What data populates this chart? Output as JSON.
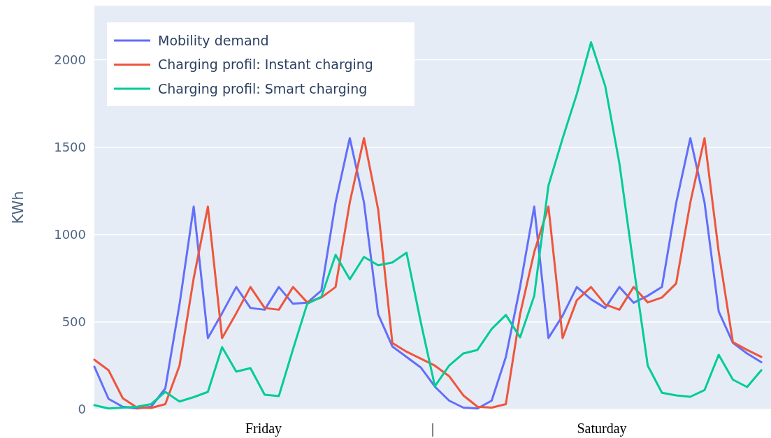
{
  "chart_data": {
    "type": "line",
    "ylabel": "KWh",
    "categories": [
      null,
      null,
      null,
      null,
      null,
      null,
      null,
      null,
      null,
      null,
      null,
      null,
      null,
      null,
      null,
      null,
      null,
      null,
      null,
      null,
      null,
      null,
      null,
      null,
      null,
      null,
      null,
      null,
      null,
      null,
      null,
      null,
      null,
      null,
      null,
      null,
      null,
      null,
      null,
      null,
      null,
      null,
      null,
      null,
      null,
      null,
      null,
      null
    ],
    "ylim": [
      0,
      2310
    ],
    "yticks": [
      0,
      500,
      1000,
      1500,
      2000
    ],
    "grid": "y",
    "legend": "top left",
    "line_style": "solid",
    "marker": "none",
    "annotations": [
      "Friday",
      "|",
      "Saturday"
    ],
    "series": [
      {
        "name": "Mobility demand",
        "color": "#636efa",
        "values": [
          244,
          60,
          15,
          5,
          15,
          120,
          600,
          1160,
          408,
          550,
          700,
          580,
          570,
          700,
          604,
          610,
          680,
          1184,
          1552,
          1184,
          544,
          360,
          300,
          240,
          130,
          50,
          10,
          5,
          50,
          300,
          700,
          1160,
          408,
          536,
          700,
          630,
          580,
          700,
          610,
          650,
          700,
          1180,
          1552,
          1184,
          560,
          380,
          320,
          270
        ]
      },
      {
        "name": "Charging profil: Instant charging",
        "color": "#ef553b",
        "values": [
          284,
          224,
          64,
          10,
          8,
          30,
          250,
          750,
          1160,
          408,
          550,
          700,
          580,
          570,
          700,
          612,
          640,
          700,
          1184,
          1552,
          1144,
          380,
          330,
          290,
          250,
          190,
          80,
          15,
          10,
          30,
          544,
          900,
          1160,
          408,
          624,
          700,
          600,
          570,
          700,
          612,
          640,
          720,
          1184,
          1552,
          900,
          384,
          340,
          300
        ]
      },
      {
        "name": "Charging profil: Smart charging",
        "color": "#00cc96",
        "values": [
          24,
          5,
          10,
          15,
          30,
          100,
          45,
          70,
          100,
          356,
          216,
          236,
          84,
          76,
          344,
          604,
          644,
          884,
          744,
          872,
          824,
          840,
          896,
          500,
          132,
          250,
          320,
          340,
          460,
          540,
          412,
          650,
          1280,
          1550,
          1804,
          2100,
          1850,
          1408,
          820,
          250,
          95,
          80,
          72,
          110,
          312,
          170,
          128,
          224
        ]
      }
    ]
  }
}
